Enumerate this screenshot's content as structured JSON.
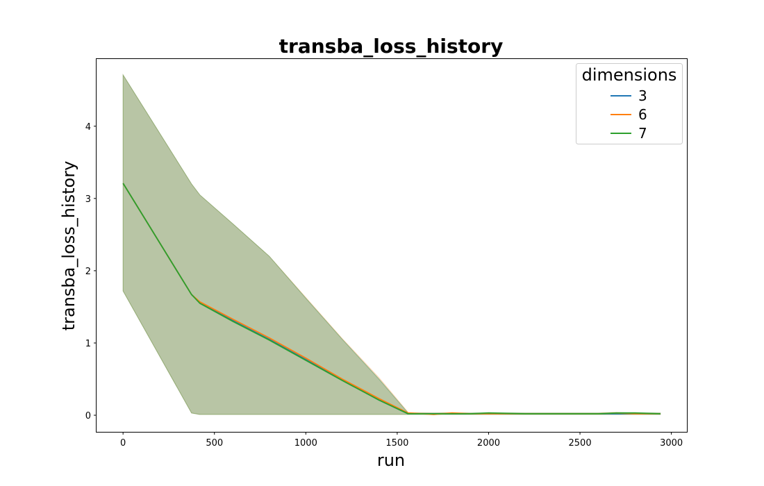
{
  "chart_data": {
    "type": "line",
    "title": "transba_loss_history",
    "xlabel": "run",
    "ylabel": "transba_loss_history",
    "xlim": [
      -145,
      3085
    ],
    "ylim": [
      -0.23,
      4.93
    ],
    "xticks": [
      0,
      500,
      1000,
      1500,
      2000,
      2500,
      3000
    ],
    "yticks": [
      0,
      1,
      2,
      3,
      4
    ],
    "grid": false,
    "legend": {
      "title": "dimensions",
      "placement": "upper-right"
    },
    "series": [
      {
        "name": "3",
        "color": "#1f77b4",
        "x": [
          0,
          375,
          420,
          600,
          800,
          1000,
          1200,
          1400,
          1560,
          1700,
          1800,
          1900,
          2000,
          2200,
          2400,
          2600,
          2700,
          2800,
          2940
        ],
        "y": [
          3.21,
          1.67,
          1.56,
          1.31,
          1.05,
          0.77,
          0.49,
          0.21,
          0.02,
          0.02,
          0.02,
          0.02,
          0.02,
          0.02,
          0.02,
          0.02,
          0.02,
          0.02,
          0.02
        ],
        "band_low": [
          1.72,
          0.03,
          0.01,
          0.01,
          0.01,
          0.01,
          0.01,
          0.01,
          0.01,
          0.01,
          0.01,
          0.01,
          0.01,
          0.01,
          0.01,
          0.01,
          0.01,
          0.01,
          0.01
        ],
        "band_high": [
          4.71,
          3.2,
          3.05,
          2.65,
          2.2,
          1.62,
          1.05,
          0.5,
          0.03,
          0.03,
          0.03,
          0.03,
          0.03,
          0.03,
          0.03,
          0.03,
          0.03,
          0.03,
          0.03
        ]
      },
      {
        "name": "6",
        "color": "#ff7f0e",
        "x": [
          0,
          375,
          420,
          600,
          800,
          1000,
          1200,
          1400,
          1560,
          1700,
          1800,
          1900,
          2000,
          2200,
          2400,
          2600,
          2700,
          2800,
          2940
        ],
        "y": [
          3.21,
          1.67,
          1.57,
          1.33,
          1.07,
          0.79,
          0.5,
          0.23,
          0.03,
          0.01,
          0.03,
          0.02,
          0.02,
          0.02,
          0.02,
          0.02,
          0.03,
          0.02,
          0.02
        ],
        "band_low": [
          1.72,
          0.03,
          0.01,
          0.01,
          0.01,
          0.01,
          0.01,
          0.01,
          0.01,
          0.01,
          0.01,
          0.01,
          0.01,
          0.01,
          0.01,
          0.01,
          0.01,
          0.01,
          0.01
        ],
        "band_high": [
          4.71,
          3.2,
          3.05,
          2.65,
          2.2,
          1.63,
          1.06,
          0.52,
          0.04,
          0.03,
          0.04,
          0.03,
          0.03,
          0.03,
          0.03,
          0.03,
          0.04,
          0.03,
          0.03
        ]
      },
      {
        "name": "7",
        "color": "#2ca02c",
        "x": [
          0,
          375,
          420,
          600,
          800,
          1000,
          1200,
          1400,
          1560,
          1700,
          1800,
          1900,
          2000,
          2200,
          2400,
          2600,
          2700,
          2800,
          2940
        ],
        "y": [
          3.21,
          1.67,
          1.55,
          1.3,
          1.04,
          0.76,
          0.48,
          0.21,
          0.02,
          0.02,
          0.02,
          0.02,
          0.03,
          0.02,
          0.02,
          0.02,
          0.03,
          0.03,
          0.02
        ],
        "band_low": [
          1.72,
          0.03,
          0.01,
          0.01,
          0.01,
          0.01,
          0.01,
          0.01,
          0.01,
          0.01,
          0.01,
          0.01,
          0.01,
          0.01,
          0.01,
          0.01,
          0.01,
          0.01,
          0.01
        ],
        "band_high": [
          4.71,
          3.2,
          3.05,
          2.65,
          2.2,
          1.62,
          1.05,
          0.5,
          0.03,
          0.03,
          0.03,
          0.03,
          0.04,
          0.03,
          0.03,
          0.03,
          0.04,
          0.04,
          0.03
        ]
      }
    ]
  }
}
